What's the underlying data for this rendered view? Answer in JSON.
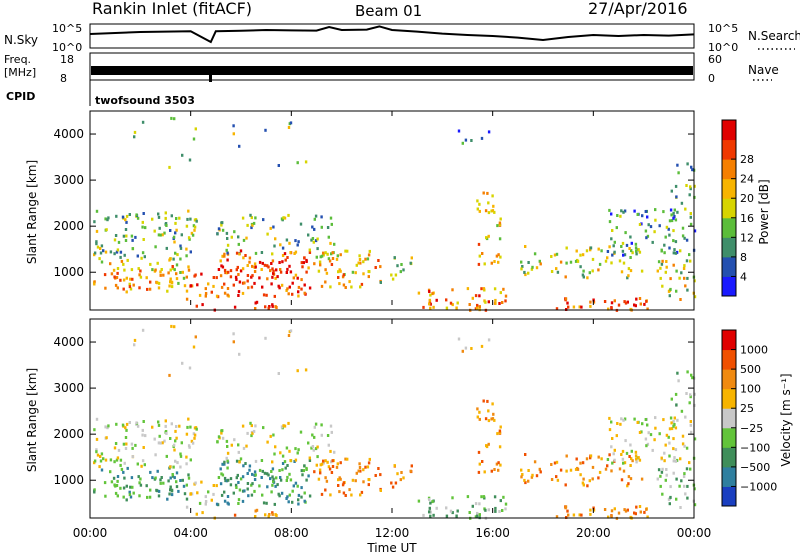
{
  "header": {
    "station": "Rankin Inlet (fitACF)",
    "beam": "Beam 01",
    "date": "27/Apr/2016"
  },
  "chart_data": [
    {
      "type": "line",
      "name": "noise-panel",
      "left_label": "N.Sky",
      "right_label": "N.Search",
      "left_ticks": [
        "10^5",
        "10^0"
      ],
      "right_ticks": [
        "10^5",
        "10^0"
      ],
      "x": [
        0,
        1,
        2,
        3,
        4,
        4.8,
        5,
        6,
        7,
        8,
        9,
        9.5,
        10,
        11,
        11.5,
        12,
        13,
        14,
        15,
        16,
        17,
        18,
        19,
        20,
        21,
        22,
        23,
        24
      ],
      "y": [
        0.6,
        0.65,
        0.7,
        0.72,
        0.74,
        0.2,
        0.74,
        0.76,
        0.8,
        0.78,
        0.77,
        0.95,
        0.8,
        0.82,
        0.98,
        0.8,
        0.72,
        0.62,
        0.55,
        0.5,
        0.42,
        0.3,
        0.45,
        0.55,
        0.5,
        0.55,
        0.52,
        0.58
      ]
    },
    {
      "type": "line",
      "name": "frequency-panel",
      "left_label": "Freq.",
      "left_unit": "[MHz]",
      "right_label": "Nave",
      "left_ticks": [
        "18",
        "8"
      ],
      "right_ticks": [
        "60",
        "0"
      ],
      "cpid_label": "CPID",
      "cpid_value": "twofsound 3503"
    },
    {
      "type": "heatmap",
      "name": "power-panel",
      "ylabel": "Slant Range [km]",
      "ylim": [
        180,
        4500
      ],
      "yticks": [
        "1000",
        "2000",
        "3000",
        "4000"
      ],
      "xlim": [
        0,
        24
      ],
      "colorbar_label": "Power [dB]",
      "colorbar_ticks": [
        "4",
        "8",
        "12",
        "16",
        "20",
        "24",
        "28"
      ],
      "colors": [
        "#1a1aff",
        "#2450b0",
        "#3f8e6a",
        "#5bbd3a",
        "#d7d400",
        "#f7b400",
        "#f57f00",
        "#f03800",
        "#e00000"
      ]
    },
    {
      "type": "heatmap",
      "name": "velocity-panel",
      "ylabel": "Slant Range [km]",
      "ylim": [
        180,
        4500
      ],
      "yticks": [
        "1000",
        "2000",
        "3000",
        "4000"
      ],
      "xlim": [
        0,
        24
      ],
      "colorbar_label": "Velocity [m s⁻¹]",
      "colorbar_ticks": [
        "1000",
        "500",
        "100",
        "25",
        "−25",
        "−100",
        "−500",
        "−1000"
      ],
      "colors": [
        "#1a3fc0",
        "#2f7f9f",
        "#3f8e5a",
        "#62c43a",
        "#c8c8c8",
        "#f7b400",
        "#f08a10",
        "#f05000",
        "#e00000"
      ]
    }
  ],
  "xaxis": {
    "ticks": [
      "00:00",
      "04:00",
      "08:00",
      "12:00",
      "16:00",
      "20:00",
      "00:00"
    ],
    "label": "Time UT"
  }
}
